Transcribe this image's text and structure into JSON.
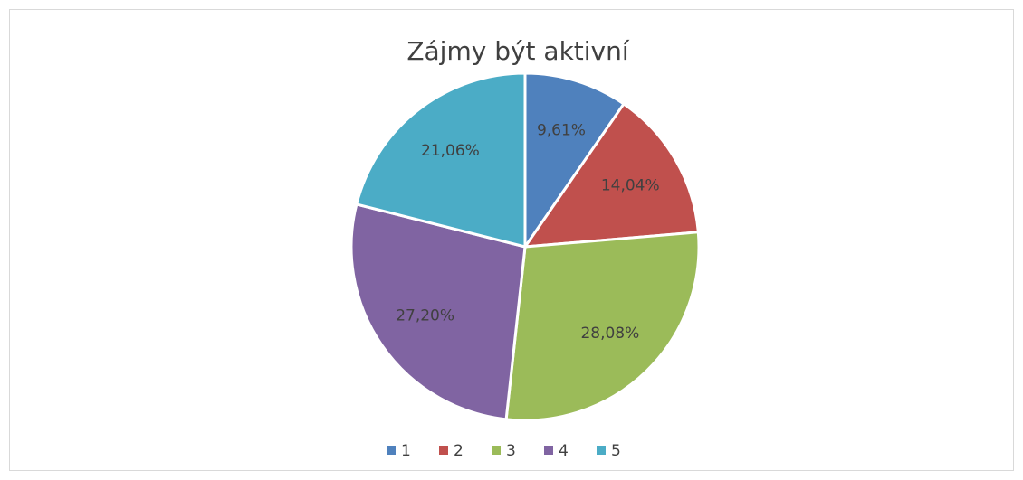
{
  "chart_data": {
    "type": "pie",
    "title": "Zájmy být aktivní",
    "categories": [
      "1",
      "2",
      "3",
      "4",
      "5"
    ],
    "values": [
      9.61,
      14.04,
      28.08,
      27.2,
      21.06
    ],
    "value_labels": [
      "9,61%",
      "14,04%",
      "28,08%",
      "27,20%",
      "21,06%"
    ],
    "colors": [
      "#4f81bd",
      "#c0504d",
      "#9bbb59",
      "#8064a2",
      "#4bacc6"
    ],
    "legend": "bottom"
  }
}
